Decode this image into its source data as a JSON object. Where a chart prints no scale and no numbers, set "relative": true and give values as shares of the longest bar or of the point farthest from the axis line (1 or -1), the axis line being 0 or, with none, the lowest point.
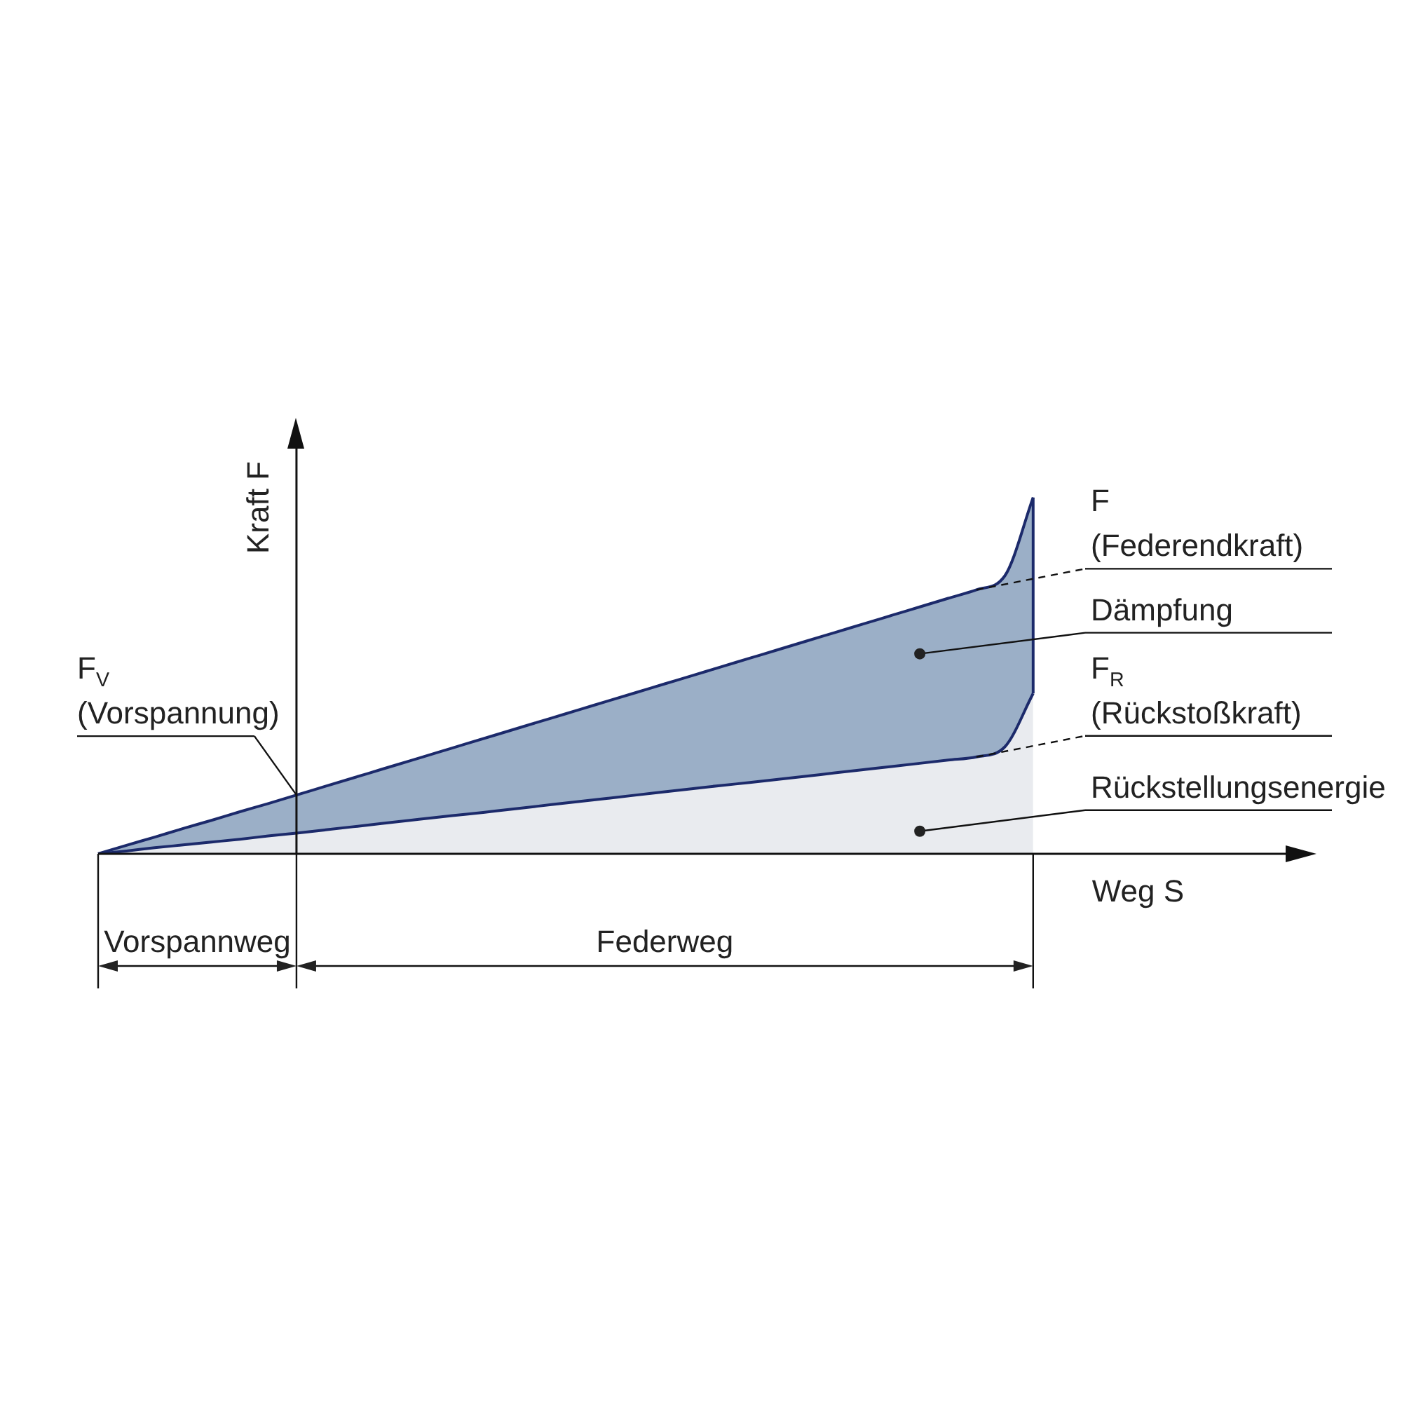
{
  "chart_data": {
    "type": "area",
    "relative": true,
    "tick_labels": false,
    "xlabel": "Weg S",
    "ylabel": "Kraft F",
    "marker": "none",
    "legend": false,
    "categories": [
      null,
      null,
      null,
      null,
      null,
      null,
      null,
      null,
      null,
      null,
      null,
      null,
      null,
      null,
      null,
      null,
      null,
      null,
      null,
      null,
      null,
      null,
      null,
      null,
      null,
      null,
      null,
      null,
      null,
      null,
      null,
      null,
      null,
      null,
      null,
      null,
      null,
      null,
      null,
      null,
      null,
      null,
      null,
      null
    ],
    "series": [
      {
        "color": "#e9ebef",
        "values": [
          0,
          0.008,
          0.017,
          0.025,
          0.033,
          0.041,
          0.05,
          0.058,
          0.067,
          0.076,
          0.085,
          0.094,
          0.103,
          0.111,
          0.12,
          0.129,
          0.138,
          0.147,
          0.156,
          0.165,
          0.174,
          0.183,
          0.192,
          0.2,
          0.209,
          0.218,
          0.227,
          0.236,
          0.245,
          0.254,
          0.263,
          0.272,
          0.3,
          0.45,
          null,
          null,
          null,
          null,
          null,
          null,
          null,
          null,
          null,
          null
        ]
      },
      {
        "color": "#9bafc7",
        "values": [
          0,
          0.024,
          0.047,
          0.071,
          0.094,
          0.118,
          0.141,
          0.165,
          0.189,
          0.213,
          0.237,
          0.261,
          0.285,
          0.309,
          0.333,
          0.357,
          0.381,
          0.405,
          0.429,
          0.453,
          0.477,
          0.501,
          0.525,
          0.549,
          0.573,
          0.597,
          0.621,
          0.645,
          0.669,
          0.693,
          0.717,
          0.741,
          0.78,
          1,
          null,
          null,
          null,
          null,
          null,
          null,
          null,
          null,
          null,
          null
        ]
      }
    ],
    "annotations": [
      "F (Federendkraft)",
      "Dämpfung",
      "F$_{R}$ (Rückstoßkraft)",
      "Rückstellungsenergie",
      "F$_{V}$ (Vorspannung)",
      "Vorspannweg",
      "Federweg"
    ]
  }
}
